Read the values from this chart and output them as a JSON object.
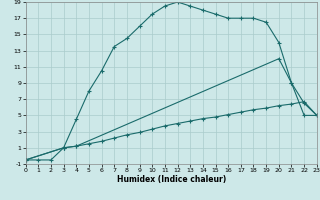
{
  "xlabel": "Humidex (Indice chaleur)",
  "bg_color": "#cde8e8",
  "grid_color": "#aacccc",
  "line_color": "#1a6b6b",
  "xlim": [
    0,
    23
  ],
  "ylim": [
    -1,
    19
  ],
  "xticks": [
    0,
    1,
    2,
    3,
    4,
    5,
    6,
    7,
    8,
    9,
    10,
    11,
    12,
    13,
    14,
    15,
    16,
    17,
    18,
    19,
    20,
    21,
    22,
    23
  ],
  "yticks": [
    -1,
    1,
    3,
    5,
    7,
    9,
    11,
    13,
    15,
    17,
    19
  ],
  "line1_x": [
    0,
    1,
    2,
    3,
    4,
    5,
    6,
    7,
    8,
    9,
    10,
    11,
    12,
    13,
    14,
    15,
    16,
    17,
    18,
    19,
    20,
    21,
    22,
    23
  ],
  "line1_y": [
    -0.5,
    -0.5,
    -0.5,
    1.0,
    4.5,
    8.0,
    10.5,
    13.5,
    14.5,
    16.0,
    17.5,
    18.5,
    19.0,
    18.5,
    18.0,
    17.5,
    17.0,
    17.0,
    17.0,
    16.5,
    14.0,
    9.0,
    5.0,
    5.0
  ],
  "line2_x": [
    0,
    3,
    4,
    20,
    21,
    22,
    23
  ],
  "line2_y": [
    -0.5,
    1.0,
    1.2,
    12.0,
    9.0,
    6.5,
    5.0
  ],
  "line3_x": [
    0,
    3,
    4,
    5,
    6,
    7,
    8,
    9,
    10,
    11,
    12,
    13,
    14,
    15,
    16,
    17,
    18,
    19,
    20,
    21,
    22,
    23
  ],
  "line3_y": [
    -0.5,
    1.0,
    1.2,
    1.5,
    1.8,
    2.2,
    2.6,
    2.9,
    3.3,
    3.7,
    4.0,
    4.3,
    4.6,
    4.8,
    5.1,
    5.4,
    5.7,
    5.9,
    6.2,
    6.4,
    6.7,
    5.0
  ]
}
